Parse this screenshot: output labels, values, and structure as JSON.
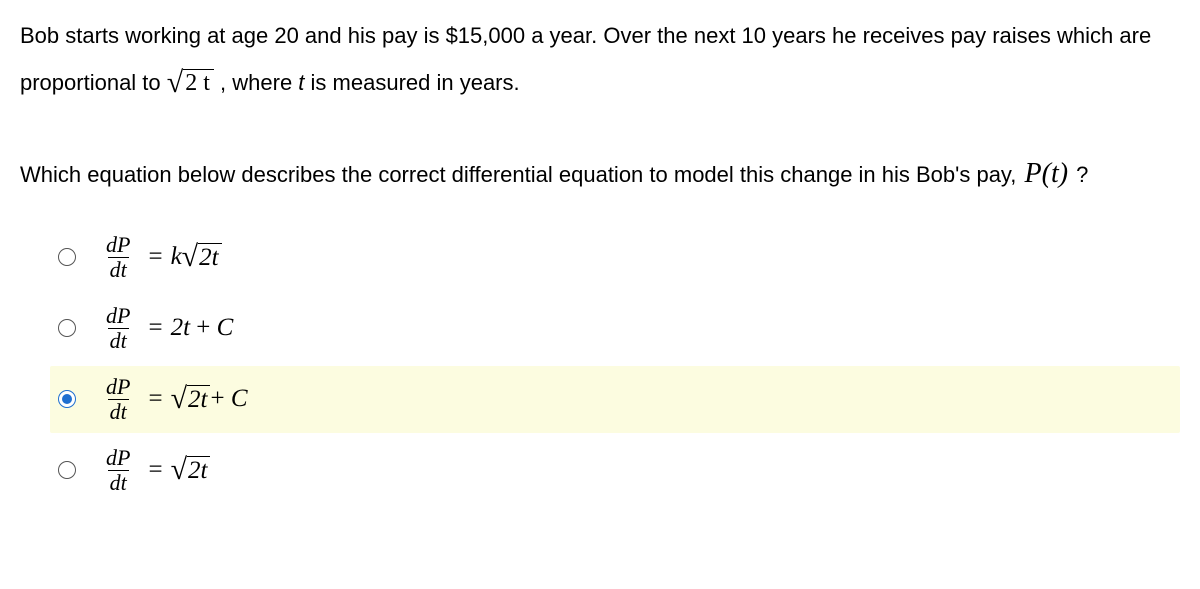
{
  "question": {
    "line1_pre": "Bob starts working at age 20 and his pay is $15,000 a year. Over the next 10 years he receives pay raises which are proportional to ",
    "sqrt_body": "2 t",
    "line1_mid": " , where ",
    "var_t": "t",
    "line1_post": " is measured in years.",
    "line2_pre": "Which equation below describes the correct differential equation to model this change in his Bob's pay, ",
    "pt": "P(t)",
    "line2_post": " ?"
  },
  "frac": {
    "num": "dP",
    "den": "dt"
  },
  "options": [
    {
      "selected": false,
      "rhs_type": "ksqrt",
      "k": "k",
      "sqrt": "2t",
      "tail": ""
    },
    {
      "selected": false,
      "rhs_type": "plain",
      "body": "2t + C"
    },
    {
      "selected": true,
      "rhs_type": "sqrt",
      "sqrt": "2t",
      "tail": " + C"
    },
    {
      "selected": false,
      "rhs_type": "sqrt",
      "sqrt": "2t",
      "tail": ""
    }
  ],
  "style": {
    "text_color": "#000000",
    "bg_color": "#ffffff",
    "highlight_bg": "#fcfce0",
    "radio_border": "#555555",
    "radio_checked": "#1f6fd0",
    "question_fontsize": 22,
    "option_fontsize": 25,
    "font_math": "Times New Roman",
    "font_ui": "Arial"
  }
}
